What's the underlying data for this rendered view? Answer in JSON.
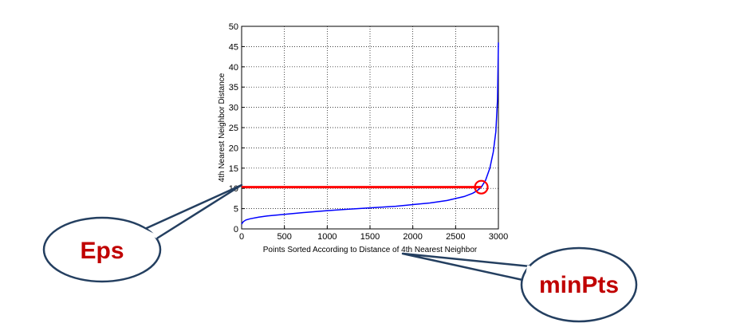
{
  "chart_data": {
    "type": "line",
    "xlabel": "Points Sorted According to Distance of 4th Nearest Neighbor",
    "ylabel": "4th Nearest Neighbor Distance",
    "xlim": [
      0,
      3000
    ],
    "ylim": [
      0,
      50
    ],
    "xticks": [
      0,
      500,
      1000,
      1500,
      2000,
      2500,
      3000
    ],
    "yticks": [
      0,
      5,
      10,
      15,
      20,
      25,
      30,
      35,
      40,
      45,
      50
    ],
    "grid": true,
    "series": [
      {
        "color": "#0000ff",
        "x": [
          0,
          20,
          50,
          100,
          200,
          300,
          500,
          700,
          1000,
          1200,
          1500,
          1800,
          2000,
          2200,
          2400,
          2500,
          2600,
          2700,
          2750,
          2800,
          2850,
          2900,
          2940,
          2970,
          2990,
          3000
        ],
        "y": [
          1.2,
          1.8,
          2.2,
          2.5,
          2.9,
          3.2,
          3.6,
          4.0,
          4.5,
          4.8,
          5.2,
          5.6,
          6.0,
          6.4,
          7.0,
          7.5,
          8.0,
          8.8,
          9.4,
          10.3,
          12.0,
          15.0,
          19.0,
          24.0,
          32.0,
          46.0
        ]
      }
    ],
    "threshold": {
      "y": 10.3,
      "x_end": 2800,
      "color": "#ff0000"
    },
    "marker": {
      "x": 2800,
      "y": 10.3,
      "shape": "circle",
      "color": "#ff0000"
    }
  },
  "callouts": {
    "eps": {
      "label": "Eps"
    },
    "minpts": {
      "label": "minPts"
    }
  },
  "colors": {
    "callout_text": "#c00000",
    "callout_stroke": "#243f60"
  }
}
